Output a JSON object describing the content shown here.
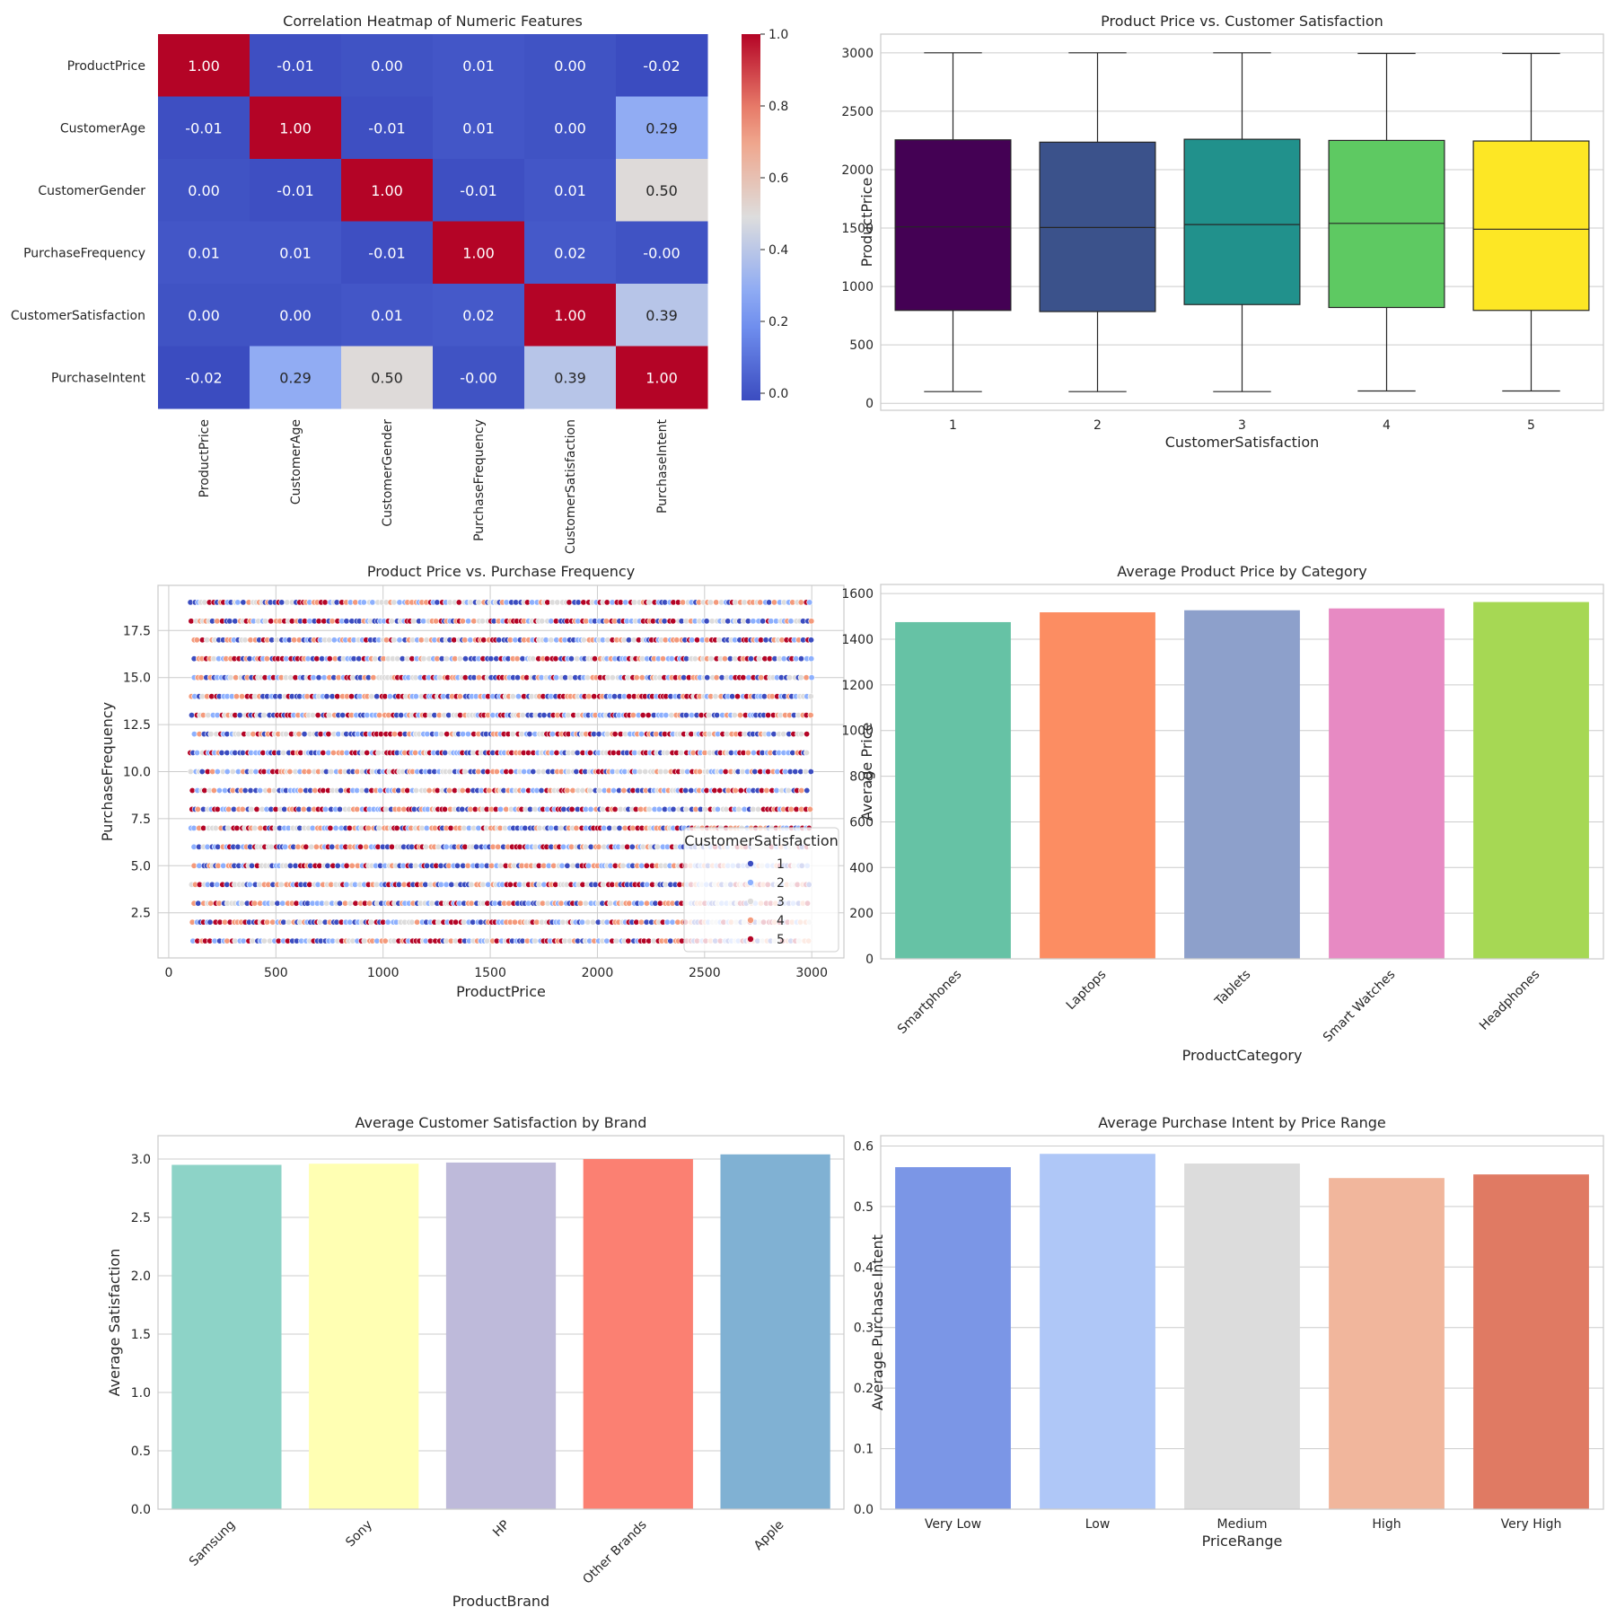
{
  "chart_data": [
    {
      "type": "heatmap",
      "title": "Correlation Heatmap of Numeric Features",
      "labels": [
        "ProductPrice",
        "CustomerAge",
        "CustomerGender",
        "PurchaseFrequency",
        "CustomerSatisfaction",
        "PurchaseIntent"
      ],
      "matrix": [
        [
          1.0,
          -0.01,
          0.0,
          0.01,
          0.0,
          -0.02
        ],
        [
          -0.01,
          1.0,
          -0.01,
          0.01,
          0.0,
          0.29
        ],
        [
          0.0,
          -0.01,
          1.0,
          -0.01,
          0.01,
          0.5
        ],
        [
          0.01,
          0.01,
          -0.01,
          1.0,
          0.02,
          -0.0
        ],
        [
          0.0,
          0.0,
          0.01,
          0.02,
          1.0,
          0.39
        ],
        [
          -0.02,
          0.29,
          0.5,
          -0.0,
          0.39,
          1.0
        ]
      ],
      "value_labels": [
        [
          "1.00",
          "-0.01",
          "0.00",
          "0.01",
          "0.00",
          "-0.02"
        ],
        [
          "-0.01",
          "1.00",
          "-0.01",
          "0.01",
          "0.00",
          "0.29"
        ],
        [
          "0.00",
          "-0.01",
          "1.00",
          "-0.01",
          "0.01",
          "0.50"
        ],
        [
          "0.01",
          "0.01",
          "-0.01",
          "1.00",
          "0.02",
          "-0.00"
        ],
        [
          "0.00",
          "0.00",
          "0.01",
          "0.02",
          "1.00",
          "0.39"
        ],
        [
          "-0.02",
          "0.29",
          "0.50",
          "-0.00",
          "0.39",
          "1.00"
        ]
      ],
      "colorbar_ticks": [
        "0.0",
        "0.2",
        "0.4",
        "0.6",
        "0.8",
        "1.0"
      ],
      "colorbar_range": [
        -0.02,
        1.0
      ],
      "colormap": "coolwarm"
    },
    {
      "type": "box",
      "title": "Product Price vs. Customer Satisfaction",
      "xlabel": "CustomerSatisfaction",
      "ylabel": "ProductPrice",
      "categories": [
        "1",
        "2",
        "3",
        "4",
        "5"
      ],
      "boxes": [
        {
          "min": 100,
          "q1": 795,
          "median": 1510,
          "q3": 2255,
          "max": 3000
        },
        {
          "min": 100,
          "q1": 785,
          "median": 1505,
          "q3": 2235,
          "max": 3000
        },
        {
          "min": 100,
          "q1": 845,
          "median": 1530,
          "q3": 2260,
          "max": 3000
        },
        {
          "min": 105,
          "q1": 820,
          "median": 1540,
          "q3": 2250,
          "max": 2995
        },
        {
          "min": 105,
          "q1": 795,
          "median": 1490,
          "q3": 2245,
          "max": 2995
        }
      ],
      "colors": [
        "#440154",
        "#3b528b",
        "#21918c",
        "#5ec962",
        "#fde725"
      ],
      "ylim": [
        -60,
        3160
      ],
      "yticks": [
        "0",
        "500",
        "1000",
        "1500",
        "2000",
        "2500",
        "3000"
      ],
      "grid": true
    },
    {
      "type": "scatter",
      "title": "Product Price vs. Purchase Frequency",
      "xlabel": "ProductPrice",
      "ylabel": "PurchaseFrequency",
      "xlim": [
        -50,
        3150
      ],
      "ylim": [
        0.1,
        19.9
      ],
      "xticks": [
        "0",
        "500",
        "1000",
        "1500",
        "2000",
        "2500",
        "3000"
      ],
      "yticks": [
        "2.5",
        "5.0",
        "7.5",
        "10.0",
        "12.5",
        "15.0",
        "17.5"
      ],
      "x_range": [
        100,
        3000
      ],
      "y_levels": [
        1,
        19
      ],
      "hue": "CustomerSatisfaction",
      "hue_levels": [
        "1",
        "2",
        "3",
        "4",
        "5"
      ],
      "hue_colors": [
        "#3b4cc0",
        "#8db0fe",
        "#dddcdc",
        "#f49a7b",
        "#b40426"
      ],
      "legend": {
        "title": "CustomerSatisfaction",
        "placement": "lower-right"
      },
      "grid": true
    },
    {
      "type": "bar",
      "title": "Average Product Price by Category",
      "xlabel": "ProductCategory",
      "ylabel": "Average Price",
      "categories": [
        "Smartphones",
        "Laptops",
        "Tablets",
        "Smart Watches",
        "Headphones"
      ],
      "values": [
        1475,
        1518,
        1527,
        1535,
        1563
      ],
      "colors": [
        "#66c2a5",
        "#fc8d62",
        "#8da0cb",
        "#e78ac3",
        "#a6d854"
      ],
      "ylim": [
        0,
        1640
      ],
      "yticks": [
        "0",
        "200",
        "400",
        "600",
        "800",
        "1000",
        "1200",
        "1400",
        "1600"
      ],
      "grid": true
    },
    {
      "type": "bar",
      "title": "Average Customer Satisfaction by Brand",
      "xlabel": "ProductBrand",
      "ylabel": "Average Satisfaction",
      "categories": [
        "Samsung",
        "Sony",
        "HP",
        "Other Brands",
        "Apple"
      ],
      "values": [
        2.95,
        2.96,
        2.97,
        3.0,
        3.04
      ],
      "colors": [
        "#8dd3c7",
        "#ffffb3",
        "#bebada",
        "#fb8072",
        "#80b1d3"
      ],
      "ylim": [
        0,
        3.2
      ],
      "yticks": [
        "0.0",
        "0.5",
        "1.0",
        "1.5",
        "2.0",
        "2.5",
        "3.0"
      ],
      "grid": true
    },
    {
      "type": "bar",
      "title": "Average Purchase Intent by Price Range",
      "xlabel": "PriceRange",
      "ylabel": "Average Purchase Intent",
      "categories": [
        "Very Low",
        "Low",
        "Medium",
        "High",
        "Very High"
      ],
      "values": [
        0.565,
        0.587,
        0.571,
        0.547,
        0.553
      ],
      "colors": [
        "#7b96e6",
        "#afc7f7",
        "#dcdcdc",
        "#f1b69c",
        "#e07a63"
      ],
      "ylim": [
        0,
        0.617
      ],
      "yticks": [
        "0.0",
        "0.1",
        "0.2",
        "0.3",
        "0.4",
        "0.5",
        "0.6"
      ],
      "grid": true
    }
  ]
}
